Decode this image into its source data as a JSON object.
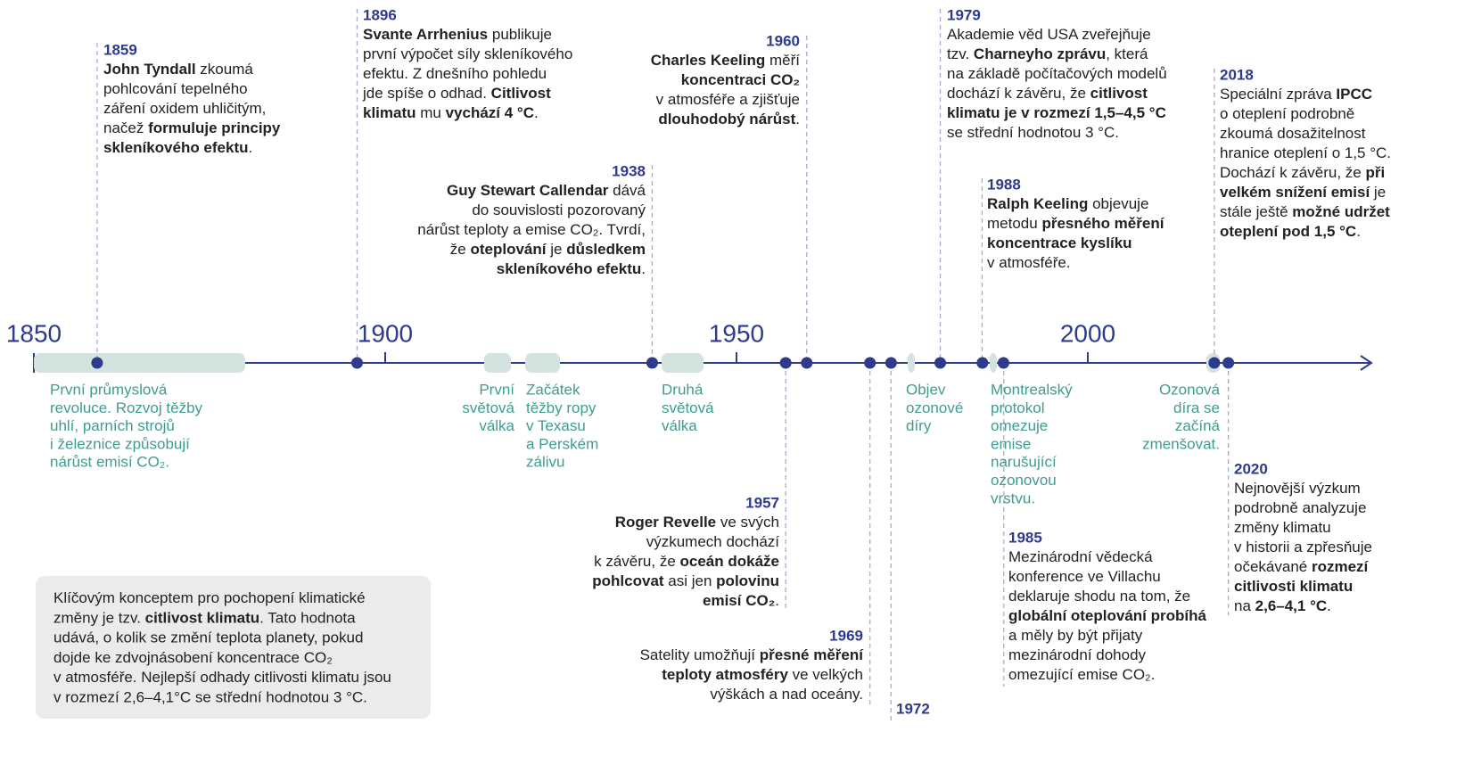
{
  "axis_labels": [
    1850,
    1900,
    1950,
    2000
  ],
  "events": [
    {
      "year": 1859,
      "lines": [
        [
          {
            "bold": "John Tyndall"
          },
          " zkoumá"
        ],
        [
          "pohlcování tepelného"
        ],
        [
          "záření oxidem uhličitým,"
        ],
        [
          "načež ",
          {
            "bold": "formuluje principy"
          }
        ],
        [
          {
            "bold": "skleníkového efektu"
          },
          "."
        ]
      ]
    },
    {
      "year": 1896,
      "lines": [
        [
          {
            "bold": "Svante Arrhenius"
          },
          " publikuje"
        ],
        [
          "první výpočet síly skleníkového"
        ],
        [
          "efektu. Z dnešního pohledu"
        ],
        [
          "jde spíše o odhad. ",
          {
            "bold": "Citlivost"
          }
        ],
        [
          {
            "bold": "klimatu"
          },
          " mu ",
          {
            "bold": "vychází 4 °C"
          },
          "."
        ]
      ]
    },
    {
      "year": 1938,
      "lines": [
        [
          {
            "bold": "Guy Stewart Callendar"
          },
          " dává"
        ],
        [
          "do souvislosti pozorovaný"
        ],
        [
          "nárůst teploty a emise CO₂. Tvrdí,"
        ],
        [
          "že ",
          {
            "bold": "oteplování"
          },
          " je ",
          {
            "bold": "důsledkem"
          }
        ],
        [
          {
            "bold": "skleníkového efektu"
          },
          "."
        ]
      ]
    },
    {
      "year": 1960,
      "lines": [
        [
          {
            "bold": "Charles Keeling"
          },
          " měří"
        ],
        [
          {
            "bold": "koncentraci CO₂"
          }
        ],
        [
          "v atmosféře a zjišťuje"
        ],
        [
          {
            "bold": "dlouhodobý nárůst"
          },
          "."
        ]
      ]
    },
    {
      "year": 1957,
      "lines": [
        [
          {
            "bold": "Roger Revelle"
          },
          " ve svých"
        ],
        [
          "výzkumech dochází"
        ],
        [
          "k závěru, že ",
          {
            "bold": "oceán dokáže"
          }
        ],
        [
          {
            "bold": "pohlcovat"
          },
          " asi jen ",
          {
            "bold": "polovinu"
          }
        ],
        [
          {
            "bold": "emisí CO₂"
          },
          "."
        ]
      ]
    },
    {
      "year": 1969,
      "lines": [
        [
          "Satelity umožňují ",
          {
            "bold": "přesné měření"
          }
        ],
        [
          {
            "bold": "teploty atmosféry"
          },
          " ve velkých"
        ],
        [
          "výškách a nad oceány."
        ]
      ]
    },
    {
      "year": 1972,
      "lines": []
    },
    {
      "year": 1979,
      "lines": [
        [
          "Akademie věd USA zveřejňuje"
        ],
        [
          "tzv. ",
          {
            "bold": "Charneyho zprávu"
          },
          ", která"
        ],
        [
          "na základě počítačových modelů"
        ],
        [
          "dochází k závěru, že ",
          {
            "bold": "citlivost"
          }
        ],
        [
          {
            "bold": "klimatu je v rozmezí 1,5–4,5 °C"
          }
        ],
        [
          "se střední hodnotou 3 °C."
        ]
      ]
    },
    {
      "year": 1985,
      "lines": [
        [
          "Mezinárodní vědecká"
        ],
        [
          "konference ve Villachu"
        ],
        [
          "deklaruje shodu na tom, že"
        ],
        [
          {
            "bold": "globální oteplování probíhá"
          }
        ],
        [
          "a měly by být přijaty"
        ],
        [
          "mezinárodní dohody"
        ],
        [
          "omezující emise CO₂."
        ]
      ]
    },
    {
      "year": 1988,
      "lines": [
        [
          {
            "bold": "Ralph Keeling"
          },
          " objevuje"
        ],
        [
          "metodu ",
          {
            "bold": "přesného měření"
          }
        ],
        [
          {
            "bold": "koncentrace kyslíku"
          }
        ],
        [
          "v atmosféře."
        ]
      ]
    },
    {
      "year": 2018,
      "lines": [
        [
          "Speciální zpráva ",
          {
            "bold": "IPCC"
          }
        ],
        [
          "o oteplení podrobně"
        ],
        [
          "zkoumá dosažitelnost"
        ],
        [
          "hranice oteplení o 1,5 °C."
        ],
        [
          "Dochází k závěru, že ",
          {
            "bold": "při"
          }
        ],
        [
          {
            "bold": "velkém snížení emisí"
          },
          " je"
        ],
        [
          "stále ještě ",
          {
            "bold": "možné udržet"
          }
        ],
        [
          {
            "bold": "oteplení pod 1,5 °C"
          },
          "."
        ]
      ]
    },
    {
      "year": 2020,
      "lines": [
        [
          "Nejnovější výzkum"
        ],
        [
          "podrobně analyzuje"
        ],
        [
          "změny klimatu"
        ],
        [
          "v historii a zpřesňuje"
        ],
        [
          "očekávané ",
          {
            "bold": "rozmezí"
          }
        ],
        [
          {
            "bold": "citlivosti klimatu"
          }
        ],
        [
          "na ",
          {
            "bold": "2,6–4,1 °C"
          },
          "."
        ]
      ]
    }
  ],
  "periods": [
    {
      "lines": [
        "První průmyslová",
        "revoluce. Rozvoj těžby",
        "uhlí, parních strojů",
        "i železnice způsobují",
        "nárůst emisí CO₂."
      ]
    },
    {
      "lines": [
        "První",
        "světová",
        "válka"
      ]
    },
    {
      "lines": [
        "Začátek",
        "těžby ropy",
        "v Texasu",
        "a Perském",
        "zálivu"
      ]
    },
    {
      "lines": [
        "Druhá",
        "světová",
        "válka"
      ]
    },
    {
      "lines": [
        "Objev",
        "ozonové",
        "díry"
      ]
    },
    {
      "lines": [
        "Montrealský",
        "protokol",
        "omezuje",
        "emise",
        "narušující",
        "ozonovou",
        "vrstvu."
      ]
    },
    {
      "lines": [
        "Ozonová",
        "díra se",
        "začíná",
        "zmenšovat."
      ]
    }
  ],
  "info_box": {
    "lines": [
      [
        "Klíčovým konceptem pro pochopení klimatické"
      ],
      [
        "změny je tzv. ",
        {
          "bold": "citlivost klimatu"
        },
        ". Tato hodnota"
      ],
      [
        "udává, o kolik se změní teplota planety, pokud"
      ],
      [
        "dojde ke zdvojnásobení koncentrace CO₂"
      ],
      [
        "v atmosféře. Nejlepší odhady citlivosti klimatu jsou"
      ],
      [
        "v rozmezí 2,6–4,1°C se střední hodnotou 3 °C."
      ]
    ]
  }
}
